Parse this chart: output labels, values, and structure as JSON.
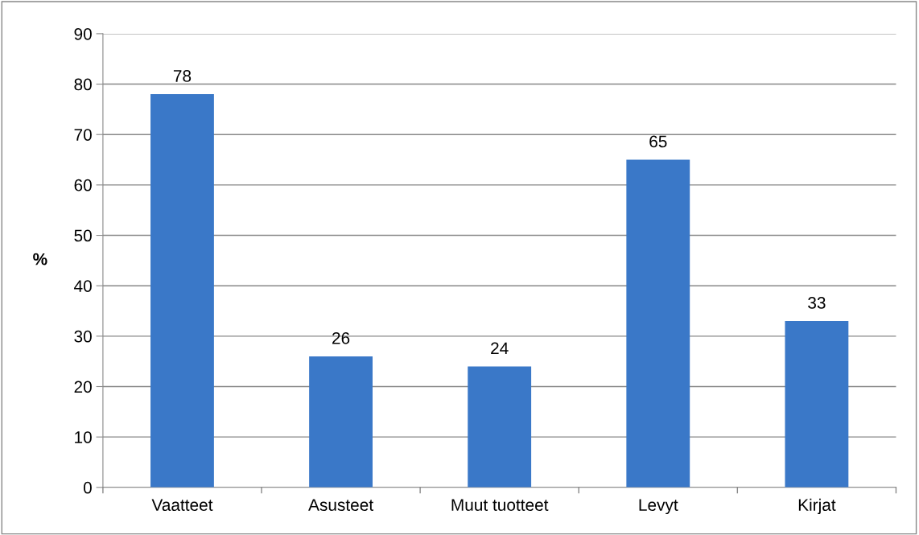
{
  "chart_data": {
    "type": "bar",
    "categories": [
      "Vaatteet",
      "Asusteet",
      "Muut tuotteet",
      "Levyt",
      "Kirjat"
    ],
    "values": [
      78,
      26,
      24,
      65,
      33
    ],
    "color": "#3a78c8",
    "ylabel": "%",
    "ylim": [
      0,
      90
    ],
    "yticks": [
      0,
      10,
      20,
      30,
      40,
      50,
      60,
      70,
      80,
      90
    ],
    "grid": "y",
    "data_labels": true,
    "legend": false
  }
}
